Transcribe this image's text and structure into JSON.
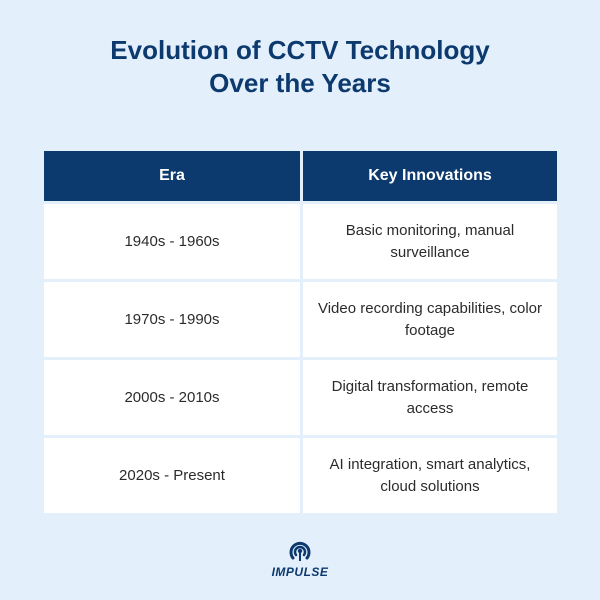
{
  "title": {
    "line1": "Evolution of CCTV Technology",
    "line2": "Over the Years"
  },
  "table": {
    "headers": [
      "Era",
      "Key Innovations"
    ],
    "rows": [
      {
        "era": "1940s - 1960s",
        "innovations": "Basic monitoring, manual surveillance"
      },
      {
        "era": "1970s - 1990s",
        "innovations": "Video recording capabilities, color footage"
      },
      {
        "era": "2000s - 2010s",
        "innovations": "Digital transformation, remote access"
      },
      {
        "era": "2020s - Present",
        "innovations": "AI integration, smart analytics, cloud solutions"
      }
    ]
  },
  "logo": {
    "text": "IMPULSE",
    "icon": "broadcast-icon",
    "color": "#0d3a6e"
  },
  "colors": {
    "background": "#e3effb",
    "header_bg": "#0d3a6e",
    "title": "#0d3a6e",
    "cell_bg": "#ffffff"
  }
}
